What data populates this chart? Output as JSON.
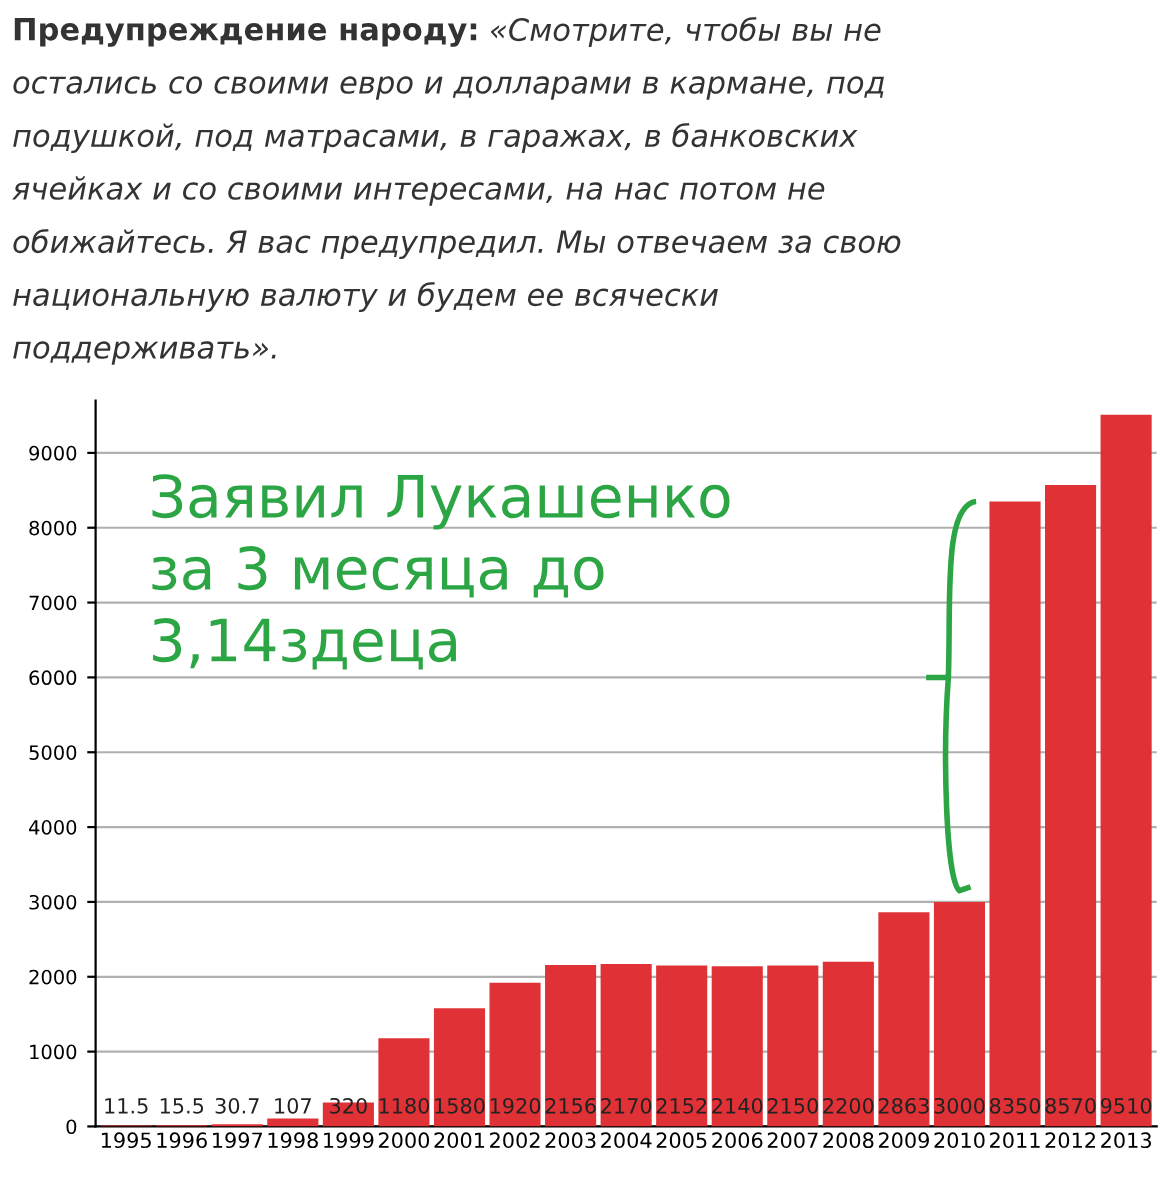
{
  "chart_data": {
    "type": "bar",
    "title": "Предупреждение народу:",
    "subtitle": "«Смотрите, чтобы вы не остались со своими евро и долларами в кармане, под подушкой, под матрасами, в гаражах, в банковских ячейках и со своими интересами, на нас потом не обижайтесь. Я вас предупредил. Мы отвечаем за свою национальную валюту и будем ее всячески поддерживать».",
    "categories": [
      "1995",
      "1996",
      "1997",
      "1998",
      "1999",
      "2000",
      "2001",
      "2002",
      "2003",
      "2004",
      "2005",
      "2006",
      "2007",
      "2008",
      "2009",
      "2010",
      "2011",
      "2012",
      "2013"
    ],
    "values": [
      11.5,
      15.5,
      30.7,
      107,
      320,
      1180,
      1580,
      1920,
      2156,
      2170,
      2152,
      2140,
      2150,
      2200,
      2863,
      3000,
      8350,
      8570,
      9510
    ],
    "color": "#e03236",
    "data_labels": true,
    "ylim": [
      0,
      9700
    ],
    "yticks": [
      0,
      1000,
      2000,
      3000,
      4000,
      5000,
      6000,
      7000,
      8000,
      9000
    ],
    "grid": "y",
    "annotations": [
      "Заявил Лукашенко\nза 3 месяца до\n3,14здеца"
    ]
  }
}
